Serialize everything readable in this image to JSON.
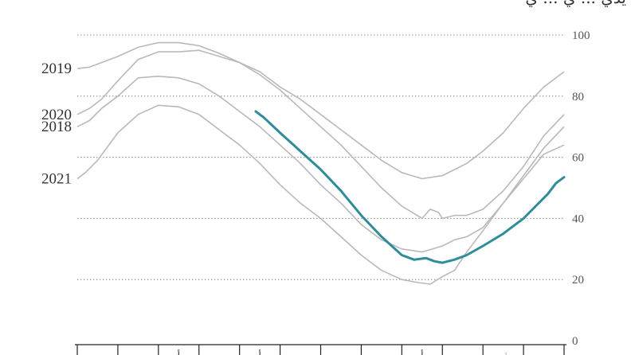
{
  "chart_data": {
    "type": "line",
    "title": "يدي ... ي ... ي",
    "yticks": [
      0,
      20,
      40,
      60,
      80,
      100
    ],
    "ylim": [
      0,
      100
    ],
    "xlim": [
      0,
      12
    ],
    "month_labels": [
      "ي",
      "ف",
      "م",
      "أ",
      "م",
      "ي",
      "ي",
      "أ",
      "س",
      "أ",
      "ن",
      "د"
    ],
    "grid": "horizontal-dotted",
    "series": [
      {
        "name": "2019",
        "color": "#b9b9b9",
        "x": [
          0,
          0.3,
          0.6,
          1,
          1.5,
          2,
          2.5,
          3,
          3.5,
          4,
          4.5,
          5,
          5.5,
          6,
          6.5,
          7,
          7.5,
          8,
          8.5,
          9,
          9.3,
          9.6,
          10,
          10.5,
          11,
          11.5,
          12
        ],
        "values": [
          89,
          89.5,
          91,
          93,
          96,
          97.5,
          97.5,
          96.5,
          94,
          91,
          88,
          83,
          79,
          74,
          69,
          64,
          59,
          55,
          53,
          54,
          56,
          58,
          62,
          68,
          76,
          83,
          88
        ]
      },
      {
        "name": "2020",
        "color": "#b9b9b9",
        "x": [
          0,
          0.3,
          0.6,
          1,
          1.5,
          2,
          2.5,
          3,
          3.5,
          4,
          4.5,
          5,
          5.5,
          6,
          6.5,
          7,
          7.5,
          8,
          8.5,
          8.7,
          8.9,
          9,
          9.3,
          9.6,
          10,
          10.5,
          11,
          11.5,
          12
        ],
        "values": [
          74,
          76,
          79,
          85,
          92,
          94.5,
          94.5,
          95,
          93,
          91,
          87,
          82,
          76,
          70,
          64,
          57,
          50,
          44,
          40,
          43,
          42,
          40,
          41,
          41,
          43,
          49,
          57,
          67,
          74
        ]
      },
      {
        "name": "2018",
        "color": "#b9b9b9",
        "x": [
          0,
          0.3,
          0.6,
          1,
          1.5,
          2,
          2.5,
          3,
          3.5,
          4,
          4.5,
          5,
          5.5,
          6,
          6.5,
          7,
          7.5,
          8,
          8.5,
          9,
          9.3,
          9.6,
          10,
          10.5,
          11,
          11.5,
          12
        ],
        "values": [
          70,
          72,
          76,
          80,
          86,
          86.5,
          86,
          84,
          80,
          75,
          70,
          64,
          58,
          51,
          45,
          38,
          33,
          30,
          29,
          31,
          33,
          34,
          37,
          45,
          54,
          63,
          70
        ]
      },
      {
        "name": "2021",
        "color": "#b9b9b9",
        "x": [
          0,
          0.2,
          0.5,
          1,
          1.5,
          2,
          2.5,
          3,
          3.5,
          4,
          4.5,
          5,
          5.5,
          6,
          6.5,
          7,
          7.5,
          8,
          8.4,
          8.7,
          9,
          9.3,
          9.6,
          10,
          10.5,
          11,
          11.5,
          12
        ],
        "values": [
          53,
          55,
          59,
          68,
          74,
          77,
          76.5,
          74,
          69,
          64,
          58,
          51,
          45,
          40,
          34,
          28,
          23,
          20,
          19,
          18.5,
          21,
          23,
          29,
          36,
          45,
          53,
          61,
          64
        ]
      },
      {
        "name": "",
        "color": "#2f8d9a",
        "x": [
          4.4,
          4.6,
          5,
          5.5,
          6,
          6.5,
          7,
          7.5,
          8,
          8.3,
          8.6,
          8.8,
          9,
          9.3,
          9.6,
          10,
          10.5,
          11,
          11.3,
          11.6,
          11.8,
          12
        ],
        "values": [
          75,
          73,
          68,
          62,
          56,
          49,
          41,
          34,
          28,
          26.5,
          27,
          26,
          25.5,
          26.5,
          28,
          31,
          35,
          40,
          44,
          48,
          51.5,
          53.5
        ]
      }
    ]
  }
}
